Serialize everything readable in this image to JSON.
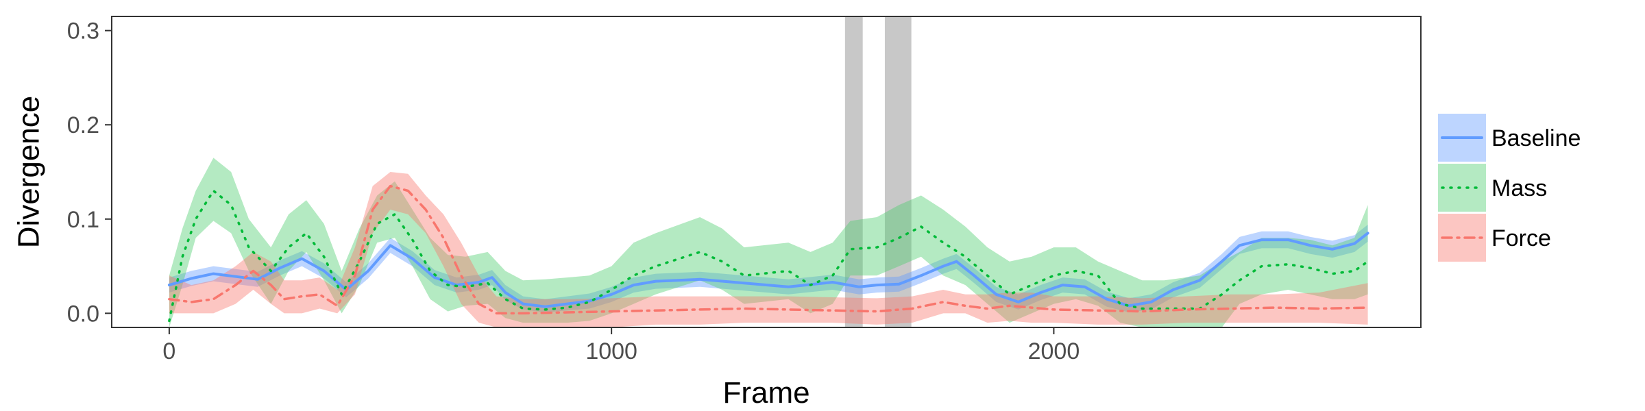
{
  "chart_data": {
    "type": "line",
    "title": "",
    "xlabel": "Frame",
    "ylabel": "Divergence",
    "xlim": [
      -130,
      2830
    ],
    "ylim": [
      -0.015,
      0.315
    ],
    "x_ticks": [
      0,
      1000,
      2000
    ],
    "x_tick_labels": [
      "0",
      "1000",
      "2000"
    ],
    "y_ticks": [
      0.0,
      0.1,
      0.2,
      0.3
    ],
    "y_tick_labels": [
      "0.0",
      "0.1",
      "0.2",
      "0.3"
    ],
    "grid": false,
    "legend_position": "right",
    "shaded_regions": [
      {
        "x0": 1528,
        "x1": 1568
      },
      {
        "x0": 1618,
        "x1": 1678
      }
    ],
    "series": [
      {
        "name": "Baseline",
        "color": "#619CFF",
        "band_color": "#619CFF",
        "line_style": "solid",
        "points": [
          [
            0,
            0.03,
            0.022,
            0.038
          ],
          [
            50,
            0.037,
            0.029,
            0.045
          ],
          [
            100,
            0.042,
            0.034,
            0.05
          ],
          [
            150,
            0.039,
            0.031,
            0.047
          ],
          [
            200,
            0.036,
            0.028,
            0.044
          ],
          [
            250,
            0.048,
            0.04,
            0.056
          ],
          [
            300,
            0.058,
            0.05,
            0.066
          ],
          [
            350,
            0.045,
            0.037,
            0.053
          ],
          [
            400,
            0.025,
            0.017,
            0.033
          ],
          [
            450,
            0.045,
            0.037,
            0.053
          ],
          [
            500,
            0.072,
            0.064,
            0.08
          ],
          [
            550,
            0.058,
            0.05,
            0.066
          ],
          [
            600,
            0.038,
            0.03,
            0.046
          ],
          [
            650,
            0.03,
            0.022,
            0.038
          ],
          [
            700,
            0.033,
            0.025,
            0.041
          ],
          [
            730,
            0.038,
            0.03,
            0.046
          ],
          [
            760,
            0.022,
            0.014,
            0.03
          ],
          [
            800,
            0.01,
            0.004,
            0.018
          ],
          [
            850,
            0.007,
            0.001,
            0.015
          ],
          [
            900,
            0.01,
            0.003,
            0.018
          ],
          [
            950,
            0.013,
            0.005,
            0.021
          ],
          [
            1000,
            0.02,
            0.012,
            0.028
          ],
          [
            1050,
            0.03,
            0.022,
            0.038
          ],
          [
            1100,
            0.034,
            0.026,
            0.042
          ],
          [
            1200,
            0.036,
            0.028,
            0.044
          ],
          [
            1300,
            0.032,
            0.024,
            0.04
          ],
          [
            1400,
            0.028,
            0.02,
            0.036
          ],
          [
            1500,
            0.033,
            0.025,
            0.041
          ],
          [
            1560,
            0.028,
            0.02,
            0.036
          ],
          [
            1600,
            0.03,
            0.022,
            0.038
          ],
          [
            1650,
            0.031,
            0.023,
            0.039
          ],
          [
            1700,
            0.04,
            0.032,
            0.048
          ],
          [
            1750,
            0.05,
            0.042,
            0.058
          ],
          [
            1780,
            0.055,
            0.047,
            0.063
          ],
          [
            1820,
            0.04,
            0.032,
            0.048
          ],
          [
            1870,
            0.02,
            0.012,
            0.028
          ],
          [
            1920,
            0.012,
            0.004,
            0.02
          ],
          [
            1970,
            0.022,
            0.014,
            0.03
          ],
          [
            2020,
            0.03,
            0.022,
            0.038
          ],
          [
            2070,
            0.028,
            0.02,
            0.036
          ],
          [
            2120,
            0.015,
            0.007,
            0.023
          ],
          [
            2170,
            0.008,
            0.001,
            0.016
          ],
          [
            2220,
            0.012,
            0.004,
            0.02
          ],
          [
            2270,
            0.025,
            0.017,
            0.033
          ],
          [
            2330,
            0.035,
            0.027,
            0.043
          ],
          [
            2380,
            0.055,
            0.047,
            0.063
          ],
          [
            2420,
            0.072,
            0.063,
            0.081
          ],
          [
            2470,
            0.078,
            0.069,
            0.087
          ],
          [
            2530,
            0.078,
            0.069,
            0.087
          ],
          [
            2580,
            0.072,
            0.063,
            0.081
          ],
          [
            2630,
            0.068,
            0.059,
            0.077
          ],
          [
            2680,
            0.074,
            0.065,
            0.083
          ],
          [
            2710,
            0.085,
            0.076,
            0.094
          ]
        ]
      },
      {
        "name": "Mass",
        "color": "#00BA38",
        "band_color": "#4DCC6E",
        "line_style": "dotted",
        "points": [
          [
            0,
            -0.008,
            -0.025,
            0.04
          ],
          [
            30,
            0.06,
            0.03,
            0.09
          ],
          [
            60,
            0.1,
            0.08,
            0.13
          ],
          [
            100,
            0.13,
            0.098,
            0.165
          ],
          [
            140,
            0.115,
            0.085,
            0.15
          ],
          [
            180,
            0.07,
            0.045,
            0.1
          ],
          [
            230,
            0.045,
            0.01,
            0.07
          ],
          [
            270,
            0.07,
            0.045,
            0.105
          ],
          [
            310,
            0.085,
            0.065,
            0.12
          ],
          [
            350,
            0.06,
            0.035,
            0.095
          ],
          [
            390,
            0.02,
            0.0,
            0.045
          ],
          [
            430,
            0.055,
            0.03,
            0.09
          ],
          [
            470,
            0.095,
            0.075,
            0.125
          ],
          [
            510,
            0.105,
            0.08,
            0.14
          ],
          [
            550,
            0.078,
            0.05,
            0.11
          ],
          [
            590,
            0.045,
            0.015,
            0.08
          ],
          [
            630,
            0.03,
            0.002,
            0.062
          ],
          [
            670,
            0.028,
            0.008,
            0.06
          ],
          [
            720,
            0.032,
            0.01,
            0.065
          ],
          [
            760,
            0.015,
            -0.005,
            0.045
          ],
          [
            800,
            0.005,
            -0.01,
            0.035
          ],
          [
            850,
            0.004,
            -0.01,
            0.036
          ],
          [
            900,
            0.006,
            -0.01,
            0.038
          ],
          [
            950,
            0.012,
            -0.008,
            0.04
          ],
          [
            1000,
            0.025,
            0.0,
            0.05
          ],
          [
            1050,
            0.04,
            0.01,
            0.075
          ],
          [
            1100,
            0.05,
            0.02,
            0.085
          ],
          [
            1200,
            0.065,
            0.035,
            0.102
          ],
          [
            1250,
            0.055,
            0.025,
            0.09
          ],
          [
            1300,
            0.04,
            0.01,
            0.07
          ],
          [
            1400,
            0.045,
            0.015,
            0.075
          ],
          [
            1450,
            0.03,
            0.0,
            0.065
          ],
          [
            1500,
            0.04,
            0.01,
            0.075
          ],
          [
            1540,
            0.068,
            0.04,
            0.098
          ],
          [
            1600,
            0.07,
            0.04,
            0.102
          ],
          [
            1650,
            0.08,
            0.05,
            0.115
          ],
          [
            1700,
            0.092,
            0.06,
            0.125
          ],
          [
            1750,
            0.075,
            0.04,
            0.11
          ],
          [
            1800,
            0.06,
            0.03,
            0.092
          ],
          [
            1850,
            0.04,
            0.01,
            0.07
          ],
          [
            1900,
            0.02,
            -0.01,
            0.055
          ],
          [
            1950,
            0.03,
            0.0,
            0.06
          ],
          [
            2000,
            0.04,
            0.01,
            0.07
          ],
          [
            2050,
            0.045,
            0.015,
            0.07
          ],
          [
            2100,
            0.04,
            0.008,
            0.055
          ],
          [
            2150,
            0.01,
            -0.01,
            0.045
          ],
          [
            2200,
            0.005,
            -0.015,
            0.035
          ],
          [
            2250,
            0.005,
            -0.015,
            0.035
          ],
          [
            2330,
            0.005,
            -0.015,
            0.04
          ],
          [
            2380,
            0.02,
            -0.015,
            0.055
          ],
          [
            2420,
            0.035,
            0.01,
            0.065
          ],
          [
            2470,
            0.05,
            0.02,
            0.08
          ],
          [
            2530,
            0.052,
            0.025,
            0.08
          ],
          [
            2580,
            0.048,
            0.02,
            0.078
          ],
          [
            2630,
            0.042,
            0.015,
            0.072
          ],
          [
            2680,
            0.045,
            0.015,
            0.08
          ],
          [
            2710,
            0.055,
            0.02,
            0.115
          ]
        ]
      },
      {
        "name": "Force",
        "color": "#F8766D",
        "band_color": "#F8766D",
        "line_style": "dashdot",
        "points": [
          [
            0,
            0.015,
            0.0,
            0.04
          ],
          [
            50,
            0.012,
            0.0,
            0.03
          ],
          [
            100,
            0.015,
            0.0,
            0.035
          ],
          [
            150,
            0.03,
            0.01,
            0.05
          ],
          [
            190,
            0.045,
            0.025,
            0.065
          ],
          [
            230,
            0.03,
            0.01,
            0.055
          ],
          [
            260,
            0.015,
            0.0,
            0.035
          ],
          [
            300,
            0.018,
            0.0,
            0.035
          ],
          [
            340,
            0.02,
            0.005,
            0.038
          ],
          [
            380,
            0.008,
            0.0,
            0.025
          ],
          [
            420,
            0.04,
            0.02,
            0.07
          ],
          [
            460,
            0.11,
            0.085,
            0.135
          ],
          [
            500,
            0.135,
            0.11,
            0.15
          ],
          [
            540,
            0.13,
            0.105,
            0.148
          ],
          [
            580,
            0.11,
            0.085,
            0.125
          ],
          [
            620,
            0.08,
            0.05,
            0.105
          ],
          [
            660,
            0.04,
            0.01,
            0.075
          ],
          [
            700,
            0.01,
            -0.01,
            0.04
          ],
          [
            740,
            0.0,
            -0.015,
            0.018
          ],
          [
            800,
            0.0,
            -0.015,
            0.015
          ],
          [
            900,
            0.001,
            -0.015,
            0.015
          ],
          [
            1000,
            0.002,
            -0.015,
            0.016
          ],
          [
            1100,
            0.003,
            -0.012,
            0.018
          ],
          [
            1200,
            0.004,
            -0.012,
            0.018
          ],
          [
            1300,
            0.005,
            -0.01,
            0.018
          ],
          [
            1400,
            0.004,
            -0.01,
            0.018
          ],
          [
            1500,
            0.003,
            -0.01,
            0.017
          ],
          [
            1600,
            0.002,
            -0.012,
            0.016
          ],
          [
            1680,
            0.005,
            -0.01,
            0.018
          ],
          [
            1750,
            0.012,
            0.0,
            0.025
          ],
          [
            1800,
            0.008,
            0.0,
            0.02
          ],
          [
            1850,
            0.005,
            -0.01,
            0.02
          ],
          [
            1900,
            0.008,
            -0.008,
            0.022
          ],
          [
            1950,
            0.006,
            -0.01,
            0.022
          ],
          [
            2000,
            0.004,
            -0.01,
            0.018
          ],
          [
            2100,
            0.003,
            -0.012,
            0.018
          ],
          [
            2200,
            0.002,
            -0.012,
            0.016
          ],
          [
            2300,
            0.004,
            -0.01,
            0.018
          ],
          [
            2400,
            0.005,
            -0.01,
            0.02
          ],
          [
            2500,
            0.006,
            -0.01,
            0.02
          ],
          [
            2600,
            0.005,
            -0.01,
            0.022
          ],
          [
            2710,
            0.006,
            -0.012,
            0.032
          ]
        ]
      }
    ]
  }
}
